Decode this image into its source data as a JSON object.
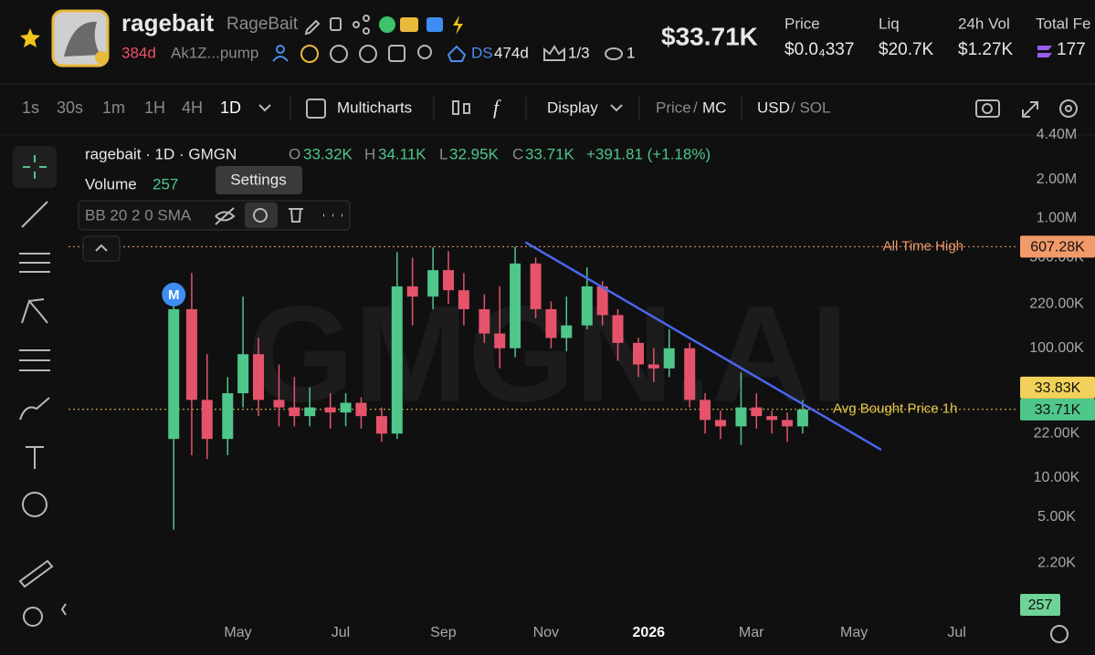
{
  "header": {
    "name": "ragebait",
    "alias": "RageBait",
    "age": "384d",
    "address": "Ak1Z...pump",
    "dex": "DS",
    "dex_age": "474d",
    "holders_ratio": "1/3",
    "watchers": "1",
    "market_cap": "$33.71K",
    "stats": [
      {
        "label": "Price",
        "value": "$0.0₄337"
      },
      {
        "label": "Liq",
        "value": "$20.7K"
      },
      {
        "label": "24h Vol",
        "value": "$1.27K"
      },
      {
        "label": "Total Fe",
        "value": "177"
      }
    ]
  },
  "toolbar": {
    "intervals": [
      "1s",
      "30s",
      "1m",
      "1H",
      "4H",
      "1D"
    ],
    "multicharts": "Multicharts",
    "display": "Display",
    "price": "Price",
    "price_sep": "/",
    "mc": "MC",
    "usd": "USD",
    "sol": "/ SOL"
  },
  "chart_data": {
    "type": "candlestick",
    "legend": {
      "title": "ragebait · 1D · GMGN",
      "o_label": "O",
      "o": "33.32K",
      "h_label": "H",
      "h": "34.11K",
      "l_label": "L",
      "l": "32.95K",
      "c_label": "C",
      "c": "33.71K",
      "change": "+391.81 (+1.18%)",
      "volume_label": "Volume",
      "volume": 257
    },
    "tooltip": "Settings",
    "indicator": "BB 20 2 0 SMA",
    "marker": "M",
    "watermark": "GMGN.AI",
    "log_scale": true,
    "grid": false,
    "up_color": "#4fc68a",
    "down_color": "#e5536b",
    "xlim": [
      0.7,
      19.2
    ],
    "xticks": [
      {
        "value": 4,
        "label": "May"
      },
      {
        "value": 6,
        "label": "Jul"
      },
      {
        "value": 8,
        "label": "Sep"
      },
      {
        "value": 10,
        "label": "Nov"
      },
      {
        "value": 12,
        "label": "2026"
      },
      {
        "value": 14,
        "label": "Mar"
      },
      {
        "value": 16,
        "label": "May"
      },
      {
        "value": 18,
        "label": "Jul"
      }
    ],
    "ylim": [
      800,
      4400000
    ],
    "yticks": [
      {
        "value": 4400000,
        "label": "4.40M"
      },
      {
        "value": 2000000,
        "label": "2.00M"
      },
      {
        "value": 1000000,
        "label": "1.00M"
      },
      {
        "value": 500000,
        "label": "500.00K"
      },
      {
        "value": 220000,
        "label": "220.00K"
      },
      {
        "value": 100000,
        "label": "100.00K"
      },
      {
        "value": 22000,
        "label": "22.00K"
      },
      {
        "value": 10000,
        "label": "10.00K"
      },
      {
        "value": 5000,
        "label": "5.00K"
      },
      {
        "value": 2200,
        "label": "2.20K"
      }
    ],
    "candles": {
      "x": [
        2.75,
        3.1,
        3.4,
        3.8,
        4.1,
        4.4,
        4.8,
        5.1,
        5.4,
        5.8,
        6.1,
        6.4,
        6.8,
        7.1,
        7.4,
        7.8,
        8.1,
        8.4,
        8.8,
        9.1,
        9.4,
        9.8,
        10.1,
        10.4,
        10.8,
        11.1,
        11.4,
        11.8,
        12.1,
        12.4,
        12.8,
        13.1,
        13.4,
        13.8,
        14.1,
        14.4,
        14.7,
        15.0
      ],
      "open": [
        20000,
        200000,
        40000,
        20000,
        45000,
        90000,
        40000,
        35000,
        30000,
        35000,
        32000,
        38000,
        30000,
        22000,
        300000,
        250000,
        400000,
        280000,
        200000,
        130000,
        100000,
        450000,
        200000,
        120000,
        150000,
        300000,
        180000,
        110000,
        75000,
        70000,
        100000,
        40000,
        28000,
        25000,
        35000,
        30000,
        28000,
        25000
      ],
      "high": [
        320000,
        380000,
        90000,
        60000,
        250000,
        120000,
        75000,
        60000,
        50000,
        45000,
        45000,
        42000,
        35000,
        550000,
        500000,
        600000,
        560000,
        380000,
        260000,
        300000,
        607280,
        500000,
        230000,
        250000,
        420000,
        330000,
        200000,
        120000,
        100000,
        140000,
        110000,
        45000,
        33000,
        65000,
        45000,
        33000,
        32000,
        40000
      ],
      "low": [
        4000,
        15000,
        14000,
        15000,
        35000,
        30000,
        25000,
        25000,
        25000,
        24000,
        25000,
        24000,
        19000,
        20000,
        150000,
        200000,
        220000,
        150000,
        110000,
        70000,
        85000,
        170000,
        100000,
        95000,
        140000,
        150000,
        80000,
        60000,
        55000,
        60000,
        35000,
        22000,
        20000,
        18000,
        24000,
        22000,
        19000,
        22000
      ],
      "close": [
        200000,
        40000,
        20000,
        45000,
        90000,
        40000,
        35000,
        30000,
        35000,
        32000,
        38000,
        30000,
        22000,
        300000,
        250000,
        400000,
        280000,
        200000,
        130000,
        100000,
        450000,
        200000,
        120000,
        150000,
        300000,
        180000,
        110000,
        75000,
        70000,
        100000,
        40000,
        28000,
        25000,
        35000,
        30000,
        28000,
        25000,
        33710
      ]
    },
    "trend_line": {
      "x": [
        9.6,
        16.53
      ],
      "y": [
        656000,
        16500
      ],
      "color": "#4a66f0"
    },
    "lines": [
      {
        "label": "All Time High",
        "value": 607280,
        "color": "#f29a6a"
      },
      {
        "label": "Avg Bought Price 1h",
        "value": 33830,
        "color": "#e8c84a"
      }
    ],
    "tags": [
      {
        "label": "607.28K",
        "value": 607280,
        "color": "#f29a6a"
      },
      {
        "label": "33.83K",
        "value": 33830,
        "color": "#f1d15a"
      },
      {
        "label": "33.71K",
        "value": 33710,
        "color": "#4fc68a"
      }
    ],
    "volume_tag_color": "#6fd296"
  }
}
